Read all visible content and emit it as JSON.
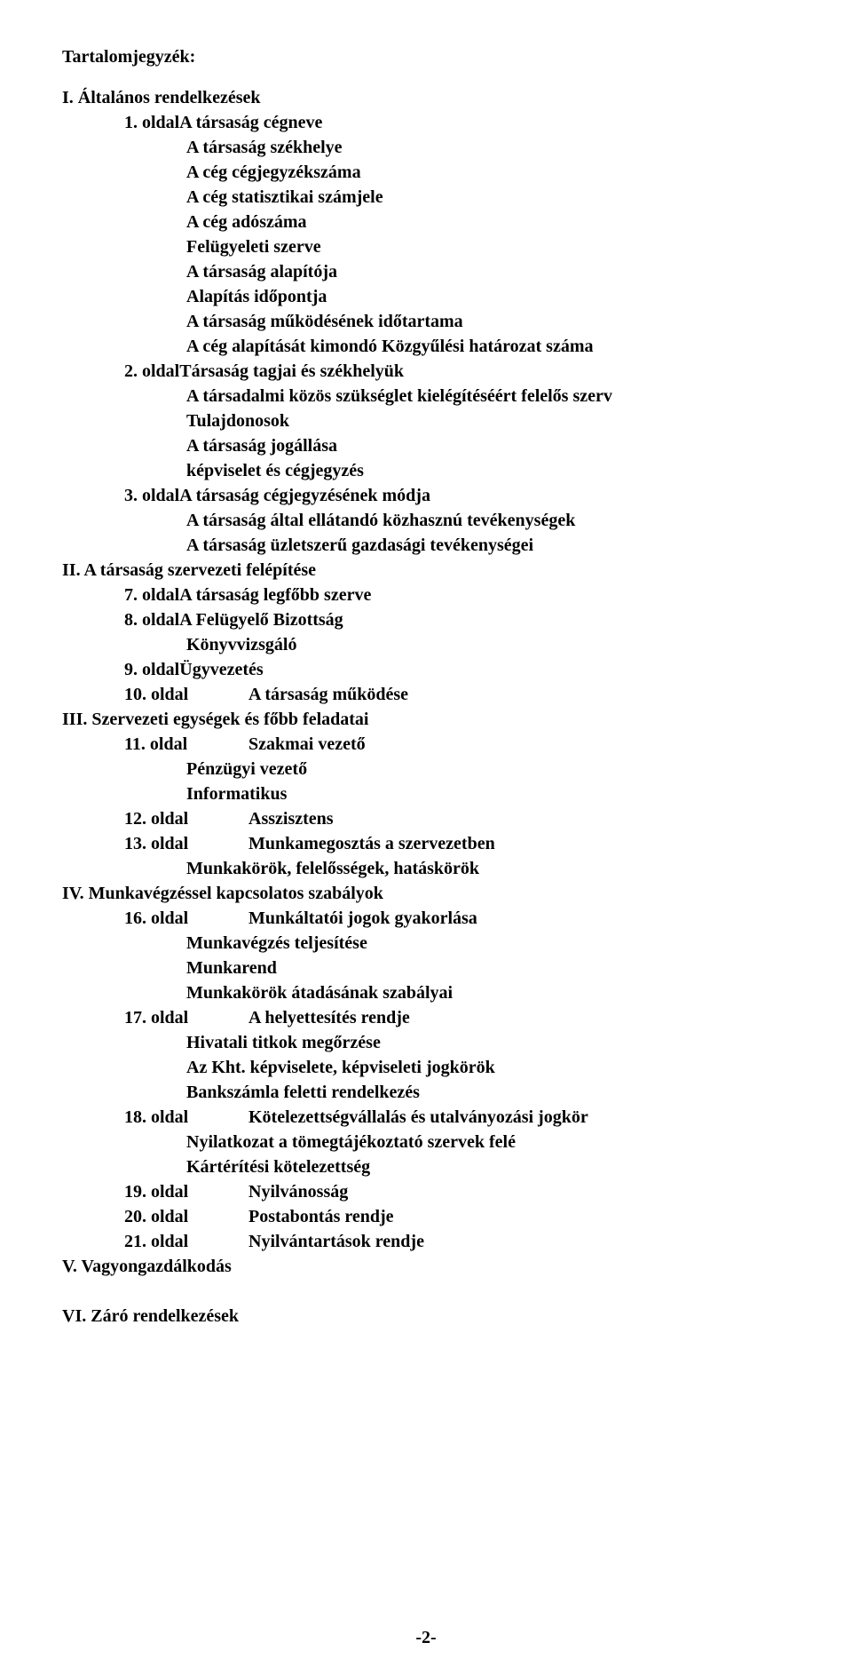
{
  "title": "Tartalomjegyzék:",
  "sections": {
    "I": {
      "heading": "I. Általános rendelkezések",
      "entries": [
        {
          "page": "1. oldal",
          "label": "A társaság cégneve",
          "sub": [
            "A társaság székhelye",
            "A cég cégjegyzékszáma",
            "A cég statisztikai számjele",
            "A cég adószáma",
            "Felügyeleti szerve",
            "A társaság alapítója",
            "Alapítás időpontja",
            "A társaság működésének időtartama",
            "A cég alapítását kimondó Közgyűlési határozat száma"
          ]
        },
        {
          "page": "2. oldal",
          "label": "Társaság tagjai és székhelyük",
          "sub": [
            "A társadalmi közös szükséglet kielégítéséért felelős szerv",
            "Tulajdonosok",
            "A társaság jogállása",
            "képviselet és cégjegyzés"
          ]
        },
        {
          "page": "3. oldal",
          "label": "A társaság cégjegyzésének módja",
          "sub": [
            "A társaság által ellátandó közhasznú tevékenységek",
            "A társaság üzletszerű gazdasági tevékenységei"
          ]
        }
      ]
    },
    "II": {
      "heading": "II. A társaság szervezeti felépítése",
      "entries": [
        {
          "page": "7. oldal",
          "label": "A társaság legfőbb szerve"
        },
        {
          "page": "8. oldal",
          "label": "A Felügyelő Bizottság",
          "sub": [
            "Könyvvizsgáló"
          ]
        },
        {
          "page": "9. oldal",
          "label": "Ügyvezetés"
        },
        {
          "page": "10. oldal",
          "label": "A társaság működése"
        }
      ]
    },
    "III": {
      "heading": "III. Szervezeti egységek és főbb feladatai",
      "entries": [
        {
          "page": "11. oldal",
          "label": "Szakmai vezető",
          "sub": [
            "Pénzügyi vezető",
            "Informatikus"
          ]
        },
        {
          "page": "12. oldal",
          "label": "Asszisztens"
        },
        {
          "page": "13. oldal",
          "label": "Munkamegosztás a szervezetben",
          "sub": [
            "Munkakörök, felelősségek, hatáskörök"
          ]
        }
      ]
    },
    "IV": {
      "heading": "IV. Munkavégzéssel kapcsolatos szabályok",
      "entries": [
        {
          "page": "16. oldal",
          "label": "Munkáltatói jogok gyakorlása",
          "sub": [
            "Munkavégzés teljesítése",
            "Munkarend",
            "Munkakörök átadásának szabályai"
          ]
        },
        {
          "page": "17. oldal",
          "label": "A helyettesítés rendje",
          "sub": [
            "Hivatali titkok megőrzése",
            "Az Kht. képviselete, képviseleti jogkörök",
            "Bankszámla feletti rendelkezés"
          ]
        },
        {
          "page": "18. oldal",
          "label": "Kötelezettségvállalás és utalványozási jogkör",
          "sub": [
            "Nyilatkozat a tömegtájékoztató szervek felé",
            "Kártérítési kötelezettség"
          ]
        },
        {
          "page": "19. oldal",
          "label": "Nyilvánosság"
        },
        {
          "page": "20. oldal",
          "label": "Postabontás rendje"
        },
        {
          "page": "21. oldal",
          "label": "Nyilvántartások rendje"
        }
      ]
    },
    "V": {
      "heading": "V. Vagyongazdálkodás"
    },
    "VI": {
      "heading": "VI. Záró rendelkezések"
    }
  },
  "pageNumber": "-2-"
}
